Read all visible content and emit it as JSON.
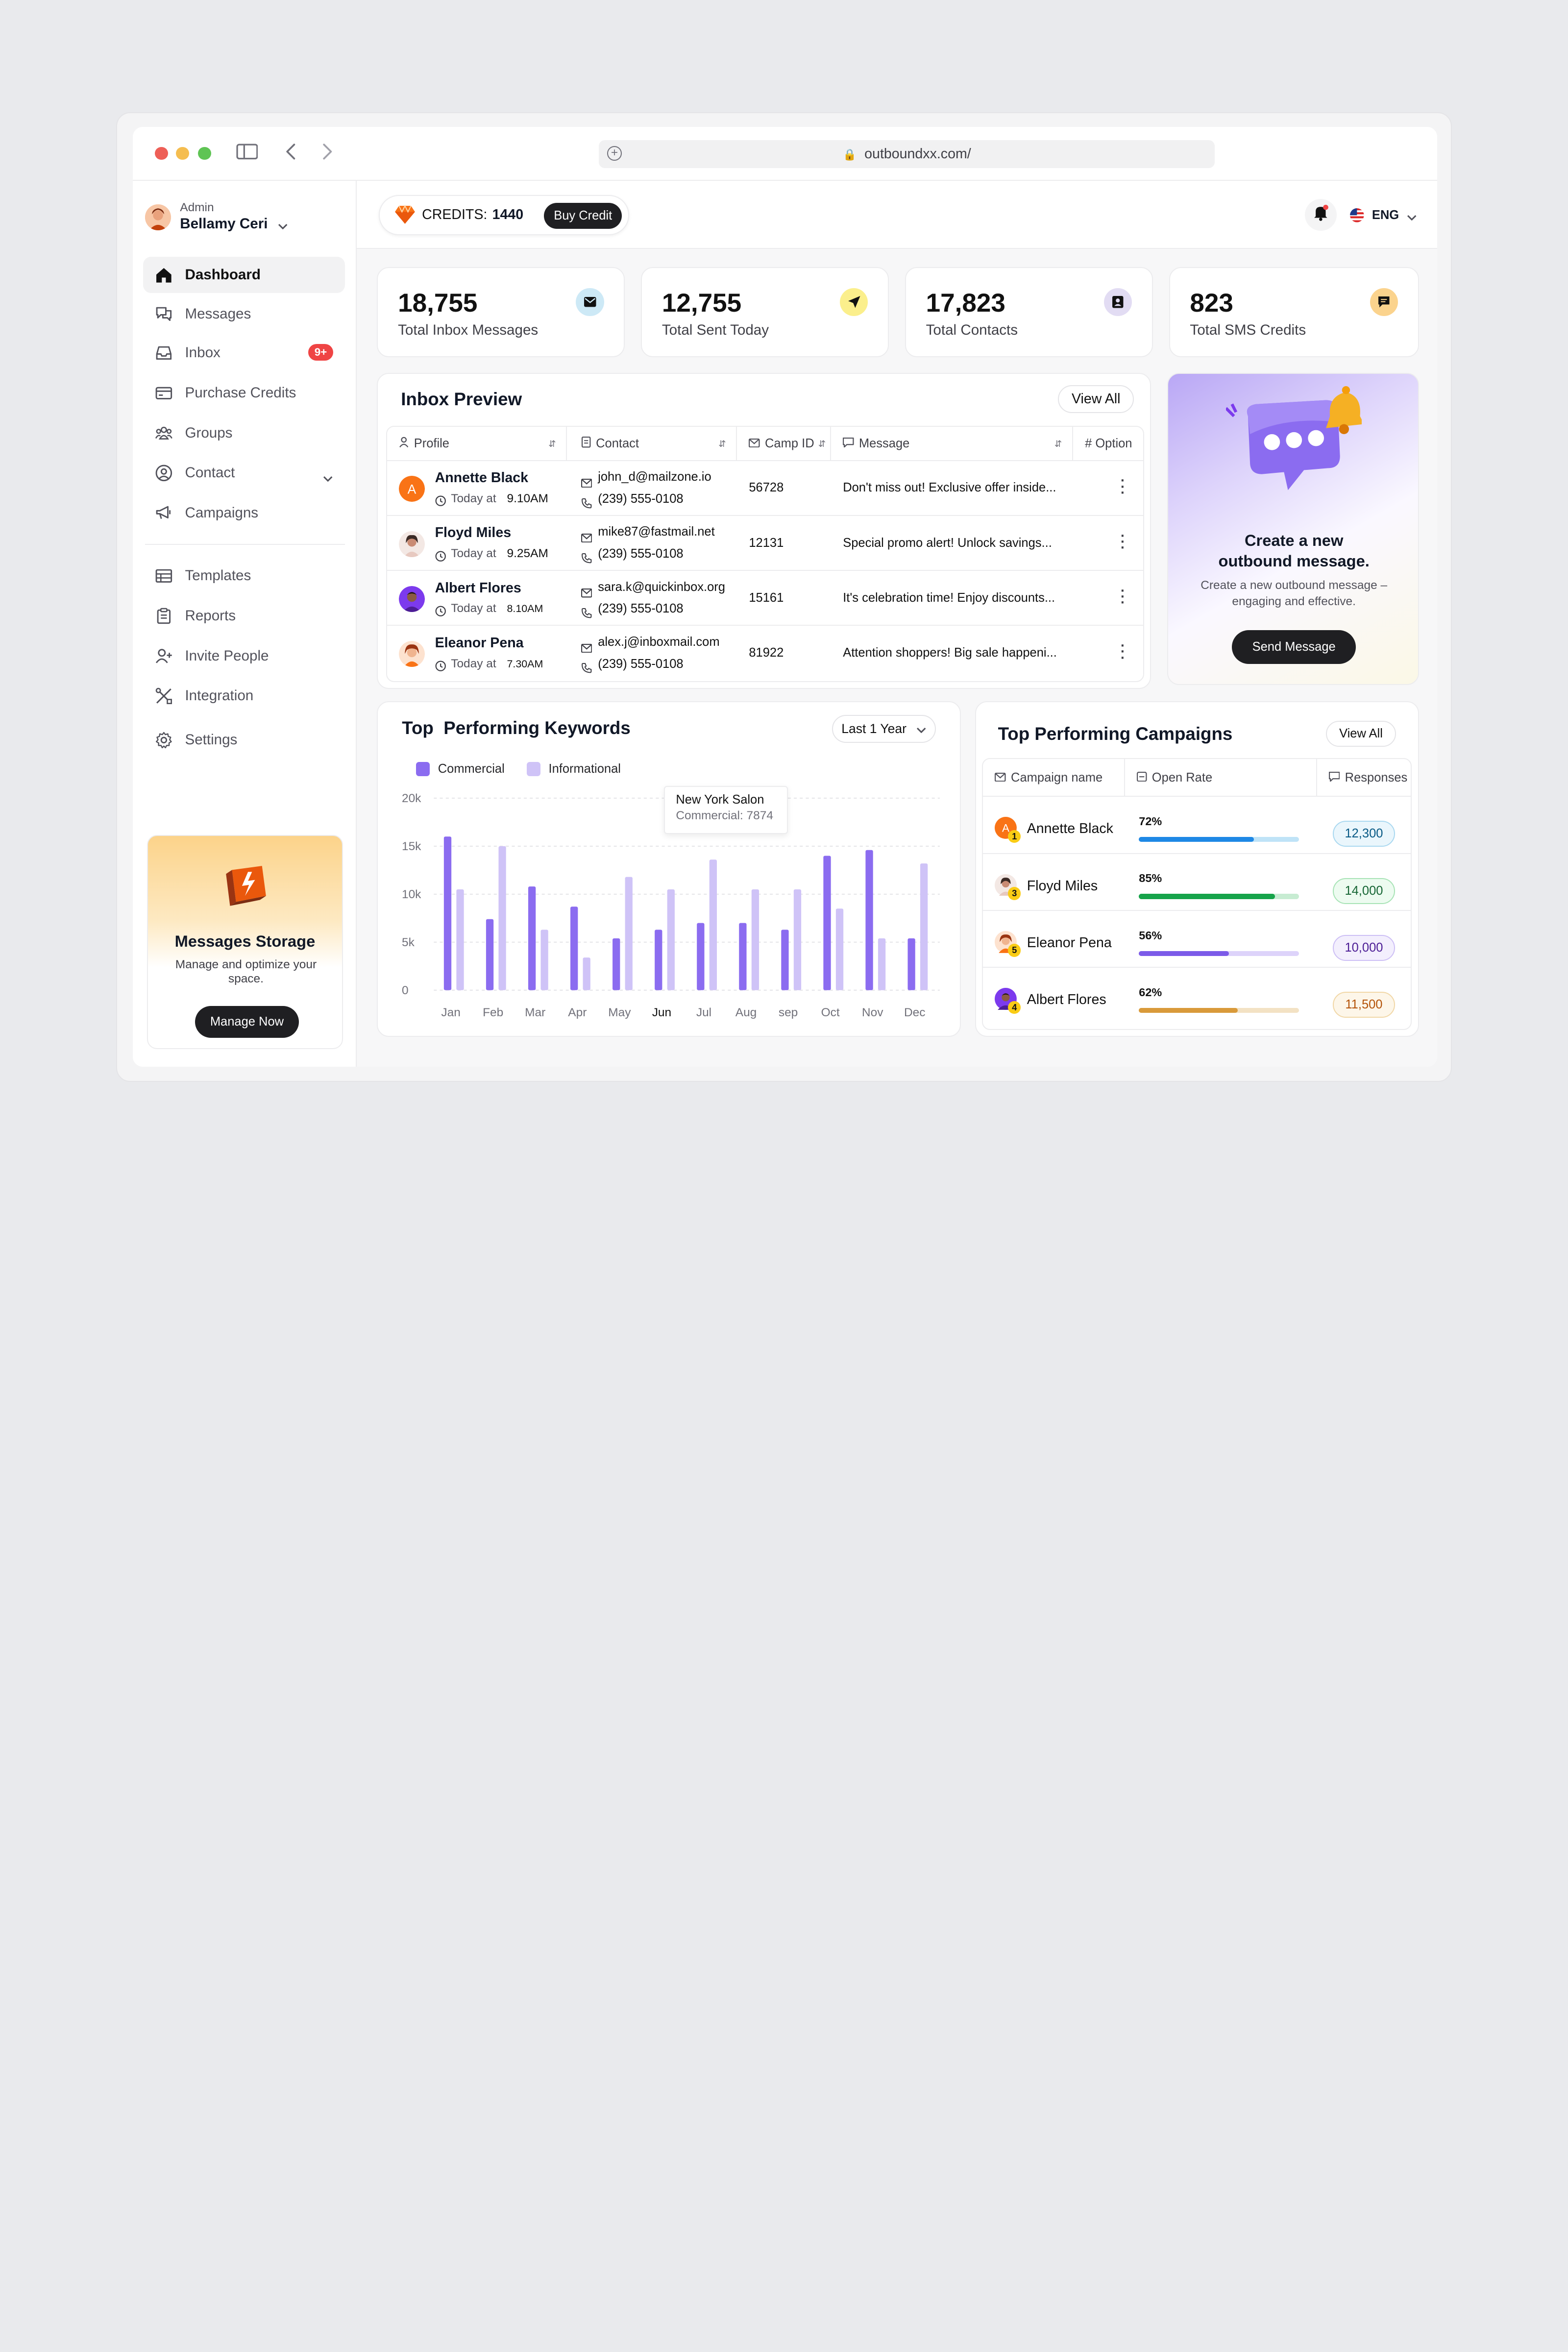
{
  "browser": {
    "url": "outboundxx.com/"
  },
  "user": {
    "role": "Admin",
    "name": "Bellamy Ceri"
  },
  "nav": {
    "items": [
      {
        "label": "Dashboard"
      },
      {
        "label": "Messages"
      },
      {
        "label": "Inbox",
        "badge": "9+"
      },
      {
        "label": "Purchase Credits"
      },
      {
        "label": "Groups"
      },
      {
        "label": "Contact"
      },
      {
        "label": "Campaigns"
      },
      {
        "label": "Templates"
      },
      {
        "label": "Reports"
      },
      {
        "label": "Invite People"
      },
      {
        "label": "Integration"
      },
      {
        "label": "Settings"
      }
    ]
  },
  "storage": {
    "title": "Messages Storage",
    "desc": "Manage and optimize your space.",
    "button": "Manage Now"
  },
  "header": {
    "credits_label": "CREDITS:",
    "credits_value": "1440",
    "buy": "Buy Credit",
    "lang": "ENG"
  },
  "stats": [
    {
      "value": "18,755",
      "label": "Total Inbox Messages"
    },
    {
      "value": "12,755",
      "label": "Total Sent Today"
    },
    {
      "value": "17,823",
      "label": "Total Contacts"
    },
    {
      "value": "823",
      "label": "Total SMS Credits"
    }
  ],
  "inbox": {
    "title": "Inbox Preview",
    "view_all": "View All",
    "columns": [
      "Profile",
      "Contact",
      "Camp ID",
      "Message",
      "# Option"
    ],
    "rows": [
      {
        "name": "Annette Black",
        "time_prefix": "Today at",
        "time": "9.10AM",
        "email": "john_d@mailzone.io",
        "phone": "(239) 555-0108",
        "camp": "56728",
        "message": "Don't miss out! Exclusive offer inside..."
      },
      {
        "name": "Floyd Miles",
        "time_prefix": "Today at",
        "time": "9.25AM",
        "email": "mike87@fastmail.net",
        "phone": "(239) 555-0108",
        "camp": "12131",
        "message": "Special promo alert! Unlock savings..."
      },
      {
        "name": "Albert Flores",
        "time_prefix": "Today at",
        "time": "8.10AM",
        "email": "sara.k@quickinbox.org",
        "phone": "(239) 555-0108",
        "camp": "15161",
        "message": "It's celebration time! Enjoy discounts..."
      },
      {
        "name": "Eleanor Pena",
        "time_prefix": "Today at",
        "time": "7.30AM",
        "email": "alex.j@inboxmail.com",
        "phone": "(239) 555-0108",
        "camp": "81922",
        "message": "Attention shoppers! Big sale happeni..."
      }
    ]
  },
  "promo": {
    "title": "Create a new outbound message.",
    "desc": "Create a new outbound message – engaging and effective.",
    "button": "Send Message"
  },
  "keywords": {
    "title": "Top  Performing Keywords",
    "range": "Last 1 Year",
    "tooltip_title": "New York Salon",
    "tooltip_value": "Commercial: 7874"
  },
  "chart_data": {
    "type": "bar",
    "categories": [
      "Jan",
      "Feb",
      "Mar",
      "Apr",
      "May",
      "Jun",
      "Jul",
      "Aug",
      "sep",
      "Oct",
      "Nov",
      "Dec"
    ],
    "series": [
      {
        "name": "Commercial",
        "color": "#8b6cf0",
        "values": [
          16000,
          7400,
          10800,
          8700,
          5400,
          6300,
          7000,
          7000,
          6300,
          14000,
          14600,
          5400
        ]
      },
      {
        "name": "Informational",
        "color": "#cfc3f7",
        "values": [
          10500,
          15000,
          6300,
          3400,
          11800,
          10500,
          13600,
          10500,
          10500,
          8500,
          5400,
          13200
        ]
      }
    ],
    "yticks": [
      "0",
      "5k",
      "10k",
      "15k",
      "20k"
    ],
    "ylim": [
      0,
      20000
    ],
    "grid": true,
    "legend": "top-left"
  },
  "campaigns": {
    "title": "Top Performing Campaigns",
    "view_all": "View All",
    "columns": [
      "Campaign name",
      "Open Rate",
      "Responses"
    ],
    "rows": [
      {
        "rank": "1",
        "name": "Annette Black",
        "rate_label": "72%",
        "rate": 0.72,
        "responses": "12,300",
        "color": "#1e88e5",
        "track": "#bfe3f7",
        "pill_bg": "#eaf6fc",
        "pill_border": "#a9d8f0",
        "pill_text": "#075985"
      },
      {
        "rank": "3",
        "name": "Floyd Miles",
        "rate_label": "85%",
        "rate": 0.85,
        "responses": "14,000",
        "color": "#16a34a",
        "track": "#c7ecd2",
        "pill_bg": "#edfbf0",
        "pill_border": "#a7e3b5",
        "pill_text": "#166534"
      },
      {
        "rank": "5",
        "name": "Eleanor Pena",
        "rate_label": "56%",
        "rate": 0.56,
        "responses": "10,000",
        "color": "#7c5be8",
        "track": "#ddd3fa",
        "pill_bg": "#f3effd",
        "pill_border": "#cdbff5",
        "pill_text": "#4c1d95"
      },
      {
        "rank": "4",
        "name": "Albert Flores",
        "rate_label": "62%",
        "rate": 0.62,
        "responses": "11,500",
        "color": "#d99a3a",
        "track": "#f3e2c4",
        "pill_bg": "#fdf6e9",
        "pill_border": "#f1d7a6",
        "pill_text": "#b45309"
      }
    ]
  }
}
